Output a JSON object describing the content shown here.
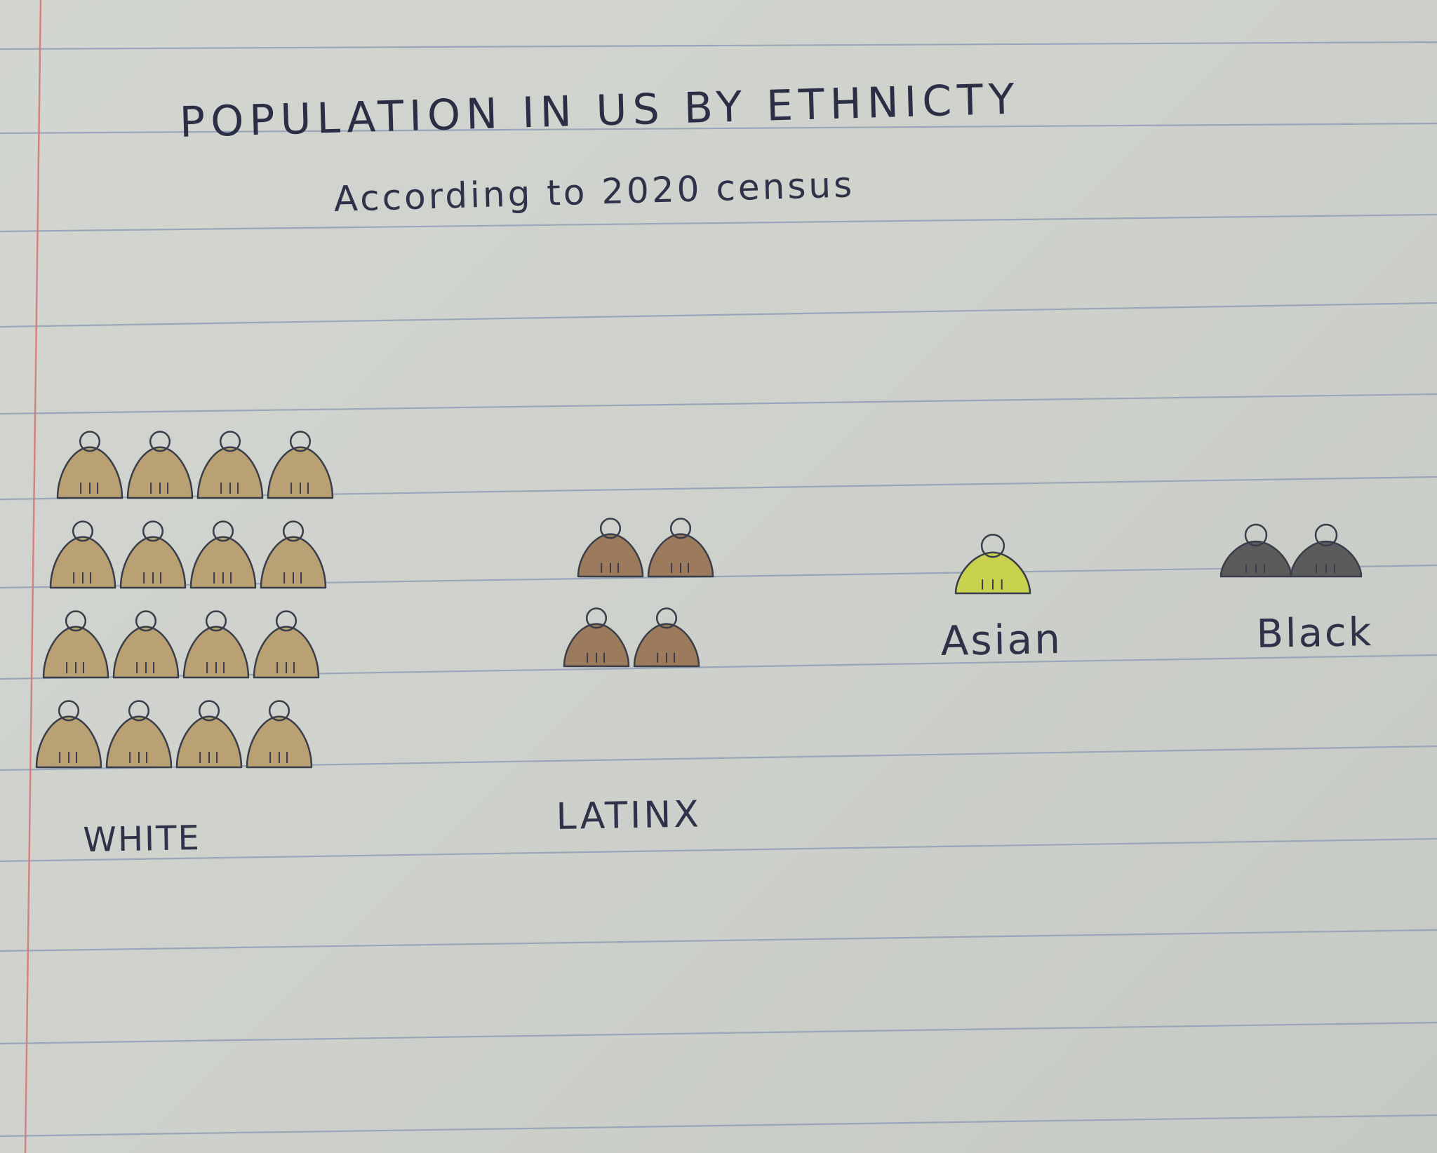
{
  "chart_data": {
    "type": "bar",
    "title": "POPULATION IN US BY ETHNICTY",
    "subtitle": "According to 2020 census",
    "categories": [
      "WHITE",
      "LATINX",
      "Asian",
      "Black"
    ],
    "values": [
      16,
      4,
      1,
      2
    ],
    "colors": [
      "#b9a174",
      "#9c7b5d",
      "#c9d24e",
      "#5b5b5b"
    ],
    "icon": "person-icon"
  }
}
